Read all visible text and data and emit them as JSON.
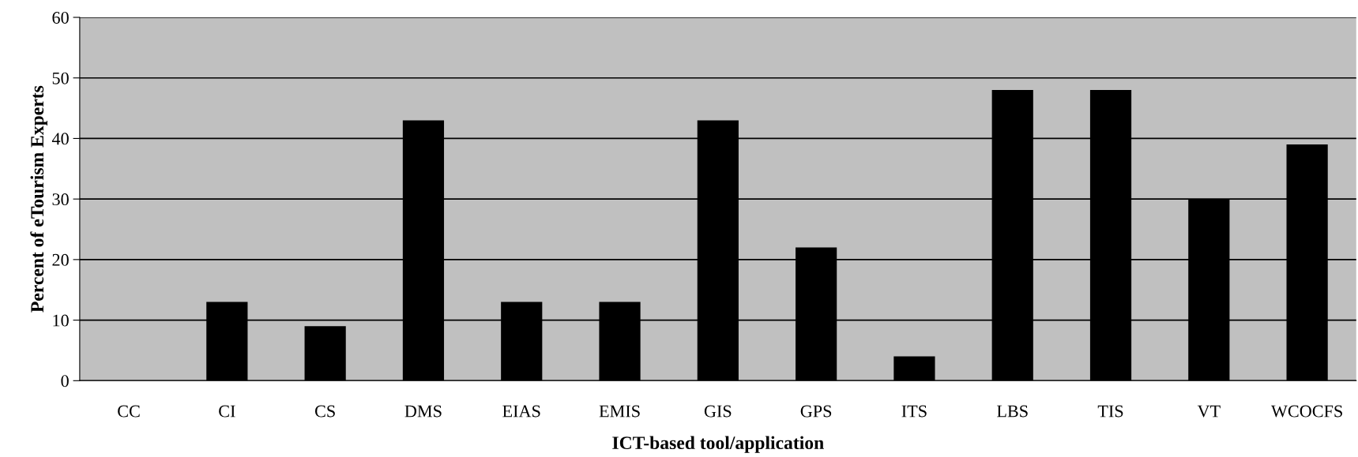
{
  "chart_data": {
    "type": "bar",
    "xlabel": "ICT-based tool/application",
    "ylabel": "Percent of eTourism Experts",
    "categories": [
      "CC",
      "CI",
      "CS",
      "DMS",
      "EIAS",
      "EMIS",
      "GIS",
      "GPS",
      "ITS",
      "LBS",
      "TIS",
      "VT",
      "WCOCFS"
    ],
    "values": [
      0,
      13,
      9,
      43,
      13,
      13,
      43,
      22,
      4,
      48,
      48,
      30,
      39
    ],
    "color": "#000000",
    "ylim": [
      0,
      60
    ],
    "yticks": [
      0,
      10,
      20,
      30,
      40,
      50,
      60
    ],
    "grid": "y"
  }
}
